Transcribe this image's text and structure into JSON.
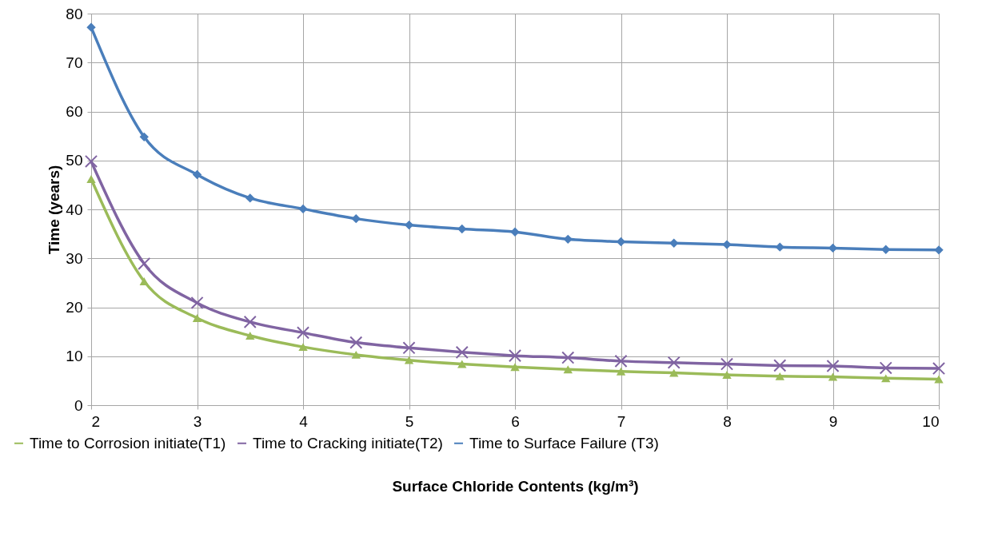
{
  "chart_data": {
    "type": "line",
    "xlabel": "Surface Chloride Contents (kg/m³)",
    "ylabel": "Time (years)",
    "x": [
      2,
      2.5,
      3,
      3.5,
      4,
      4.5,
      5,
      5.5,
      6,
      6.5,
      7,
      7.5,
      8,
      8.5,
      9,
      9.5,
      10
    ],
    "xlim": [
      2,
      10
    ],
    "xticks": [
      2,
      3,
      4,
      5,
      6,
      7,
      8,
      9,
      10
    ],
    "ylim": [
      0,
      80
    ],
    "yticks": [
      0,
      10,
      20,
      30,
      40,
      50,
      60,
      70,
      80
    ],
    "grid": true,
    "legend": "bottom",
    "line_style": "solid",
    "series": [
      {
        "name": "Time to Corrosion initiate(T1)",
        "color": "#9bbb59",
        "marker": "triangle",
        "values": [
          46.2,
          25.3,
          17.8,
          14.2,
          11.9,
          10.3,
          9.2,
          8.4,
          7.8,
          7.3,
          6.9,
          6.6,
          6.2,
          5.9,
          5.8,
          5.5,
          5.3
        ]
      },
      {
        "name": "Time to Cracking initiate(T2)",
        "color": "#8064a2",
        "marker": "cross",
        "values": [
          49.8,
          28.9,
          20.9,
          17.0,
          14.8,
          12.8,
          11.7,
          10.8,
          10.1,
          9.7,
          9.0,
          8.7,
          8.4,
          8.1,
          8.0,
          7.6,
          7.5
        ]
      },
      {
        "name": "Time to Surface Failure (T3)",
        "color": "#4a7ebb",
        "marker": "diamond",
        "values": [
          77.2,
          54.8,
          47.1,
          42.3,
          40.1,
          38.1,
          36.8,
          36.0,
          35.4,
          33.9,
          33.4,
          33.1,
          32.8,
          32.3,
          32.1,
          31.8,
          31.7
        ]
      }
    ]
  }
}
